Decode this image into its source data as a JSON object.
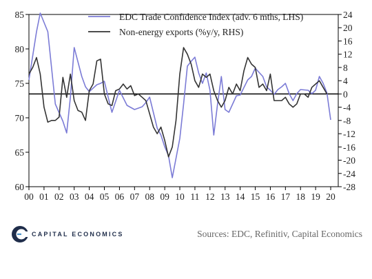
{
  "chart_data": {
    "type": "line",
    "xlabel": "",
    "ylabel_left": "",
    "ylabel_right": "",
    "x_tick_labels": [
      "00",
      "01",
      "02",
      "03",
      "04",
      "05",
      "06",
      "07",
      "08",
      "09",
      "10",
      "11",
      "12",
      "13",
      "14",
      "15",
      "16",
      "17",
      "18",
      "19",
      "20"
    ],
    "y_left": {
      "min": 60,
      "max": 85,
      "ticks": [
        60,
        65,
        70,
        75,
        80,
        85
      ]
    },
    "y_right": {
      "min": -28,
      "max": 24,
      "ticks": [
        -28,
        -24,
        -20,
        -16,
        -12,
        -8,
        -4,
        0,
        4,
        8,
        12,
        16,
        20,
        24
      ]
    },
    "zero_line_right": 0,
    "legend_position": "top-right",
    "series": [
      {
        "name": "EDC Trade Confidence Index (adv. 6 mths, LHS)",
        "axis": "left",
        "color": "#7b7bd6",
        "x": [
          2000.0,
          2000.5,
          2000.75,
          2001.25,
          2001.75,
          2002.25,
          2002.5,
          2002.75,
          2003.0,
          2003.5,
          2003.75,
          2004.0,
          2004.5,
          2004.75,
          2005.0,
          2005.25,
          2005.5,
          2006.0,
          2006.5,
          2007.0,
          2007.5,
          2007.75,
          2008.0,
          2008.5,
          2008.75,
          2009.0,
          2009.25,
          2009.5,
          2010.0,
          2010.25,
          2010.5,
          2010.75,
          2011.0,
          2011.25,
          2011.5,
          2011.75,
          2012.0,
          2012.25,
          2012.5,
          2012.75,
          2013.0,
          2013.25,
          2013.5,
          2013.75,
          2014.0,
          2014.5,
          2014.75,
          2015.0,
          2015.25,
          2015.5,
          2015.75,
          2016.0,
          2016.25,
          2016.5,
          2016.75,
          2017.0,
          2017.25,
          2017.5,
          2017.75,
          2018.0,
          2018.5,
          2018.75,
          2019.0,
          2019.25,
          2019.5,
          2019.75,
          2020.0
        ],
        "values": [
          75.5,
          82.5,
          85.2,
          82.5,
          72,
          69.5,
          67.8,
          73,
          80.2,
          76,
          74.5,
          73.8,
          74.8,
          75,
          75.3,
          73,
          70.8,
          74,
          71.8,
          71.2,
          71.6,
          72.2,
          73,
          68.5,
          67.5,
          65.8,
          64.5,
          61.3,
          67,
          72,
          77.5,
          78.2,
          78.8,
          76.5,
          75,
          76.5,
          74,
          67.5,
          72,
          76,
          71.2,
          70.8,
          72,
          73.2,
          73.3,
          75.5,
          76,
          77.2,
          76.6,
          76,
          74.5,
          74,
          73.4,
          74.1,
          74.5,
          75,
          73.5,
          72.5,
          73.5,
          74.1,
          74,
          73.5,
          74,
          76,
          75,
          73.6,
          69.7
        ]
      },
      {
        "name": "Non-energy exports (%y/y, RHS)",
        "axis": "right",
        "color": "#333333",
        "x": [
          2000.0,
          2000.25,
          2000.5,
          2000.75,
          2001.0,
          2001.25,
          2001.5,
          2001.75,
          2002.0,
          2002.25,
          2002.5,
          2002.75,
          2003.0,
          2003.25,
          2003.5,
          2003.75,
          2004.0,
          2004.25,
          2004.5,
          2004.75,
          2005.0,
          2005.25,
          2005.5,
          2005.75,
          2006.0,
          2006.25,
          2006.5,
          2006.75,
          2007.0,
          2007.25,
          2007.5,
          2007.75,
          2008.0,
          2008.25,
          2008.5,
          2008.75,
          2009.0,
          2009.25,
          2009.5,
          2009.75,
          2010.0,
          2010.25,
          2010.5,
          2010.75,
          2011.0,
          2011.25,
          2011.5,
          2011.75,
          2012.0,
          2012.25,
          2012.5,
          2012.75,
          2013.0,
          2013.25,
          2013.5,
          2013.75,
          2014.0,
          2014.25,
          2014.5,
          2014.75,
          2015.0,
          2015.25,
          2015.5,
          2015.75,
          2016.0,
          2016.25,
          2016.5,
          2016.75,
          2017.0,
          2017.25,
          2017.5,
          2017.75,
          2018.0,
          2018.25,
          2018.5,
          2018.75,
          2019.0,
          2019.25,
          2019.5,
          2019.75
        ],
        "values": [
          6,
          8,
          11,
          6,
          -4,
          -8.5,
          -8,
          -8,
          -7,
          5,
          -1,
          6,
          -2,
          -5,
          -5.5,
          -8,
          1,
          3,
          10,
          10.5,
          0,
          -3,
          -3.5,
          1,
          1.5,
          3,
          1.5,
          2.5,
          -0.5,
          0,
          -1,
          -2,
          -6,
          -10,
          -12,
          -10,
          -14,
          -19,
          -16,
          -8,
          6,
          14,
          12,
          9,
          4,
          2,
          6,
          5,
          6,
          1,
          -2,
          -4,
          -2,
          2,
          0,
          3,
          1,
          7,
          11,
          9,
          8,
          2,
          3,
          1,
          6,
          -2,
          -2,
          -2,
          -1,
          -3,
          -4,
          -3,
          0,
          0,
          -1,
          2,
          3,
          4,
          2,
          0
        ]
      }
    ]
  },
  "footer": {
    "logo_text": "CAPITAL ECONOMICS",
    "sources": "Sources: EDC, Refinitiv, Capital Economics"
  }
}
